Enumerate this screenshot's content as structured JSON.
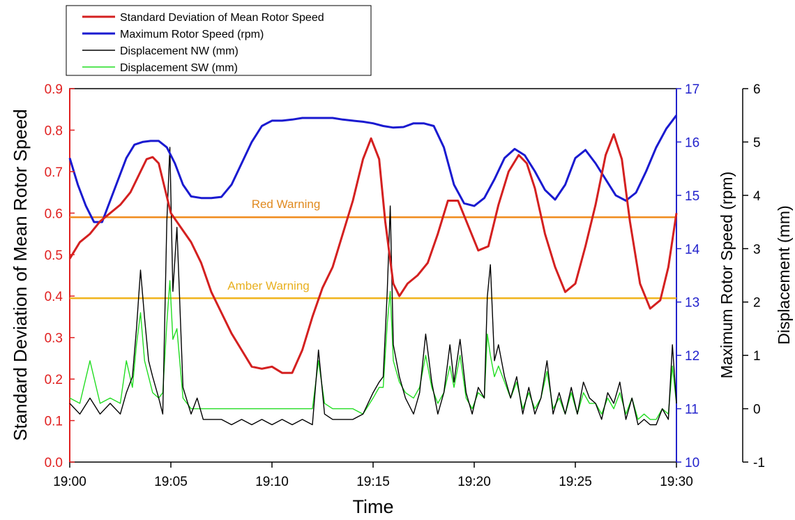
{
  "chart_data": {
    "type": "line",
    "title": "",
    "xlabel": "Time",
    "x_ticks": [
      "19:00",
      "19:05",
      "19:10",
      "19:15",
      "19:20",
      "19:25",
      "19:30"
    ],
    "xlim_minutes": [
      0,
      30
    ],
    "axes": {
      "left": {
        "label": "Standard Deviation of Mean Rotor Speed",
        "ylim": [
          0,
          0.9
        ],
        "ticks": [
          "0.0",
          "0.1",
          "0.2",
          "0.3",
          "0.4",
          "0.5",
          "0.6",
          "0.7",
          "0.8",
          "0.9"
        ],
        "color": "#e02020"
      },
      "right1": {
        "label": "Maximum Rotor Speed (rpm)",
        "ylim": [
          10,
          17
        ],
        "ticks": [
          "10",
          "11",
          "12",
          "13",
          "14",
          "15",
          "16",
          "17"
        ],
        "color": "#2222cc"
      },
      "right2": {
        "label": "Displacement (mm)",
        "ylim": [
          -1,
          6
        ],
        "ticks": [
          "-1",
          "0",
          "1",
          "2",
          "3",
          "4",
          "5",
          "6"
        ],
        "color": "#000000"
      }
    },
    "thresholds": [
      {
        "label": "Red Warning",
        "axis": "left",
        "value": 0.59,
        "color": "#f08c1e"
      },
      {
        "label": "Amber Warning",
        "axis": "left",
        "value": 0.395,
        "color": "#f0b41e"
      }
    ],
    "legend_position": "top-left",
    "series": [
      {
        "name": "Standard Deviation of Mean Rotor Speed",
        "axis": "left",
        "color": "#d42020",
        "x": [
          0,
          0.5,
          1,
          1.5,
          2,
          2.5,
          3,
          3.5,
          3.8,
          4.1,
          4.4,
          4.7,
          5,
          5.5,
          6,
          6.5,
          7,
          7.5,
          8,
          8.5,
          9,
          9.5,
          10,
          10.5,
          11,
          11.5,
          12,
          12.5,
          13,
          13.5,
          14,
          14.5,
          14.9,
          15.3,
          15.6,
          16,
          16.3,
          16.7,
          17.2,
          17.7,
          18.2,
          18.7,
          19.2,
          19.7,
          20.2,
          20.7,
          21.2,
          21.7,
          22.2,
          22.6,
          23,
          23.5,
          24,
          24.5,
          25,
          25.5,
          26,
          26.5,
          26.9,
          27.3,
          27.7,
          28.2,
          28.7,
          29.2,
          29.6,
          30
        ],
        "y": [
          0.49,
          0.53,
          0.55,
          0.58,
          0.6,
          0.62,
          0.65,
          0.7,
          0.73,
          0.735,
          0.72,
          0.66,
          0.6,
          0.565,
          0.53,
          0.48,
          0.41,
          0.36,
          0.31,
          0.27,
          0.23,
          0.225,
          0.23,
          0.215,
          0.215,
          0.27,
          0.35,
          0.42,
          0.47,
          0.55,
          0.63,
          0.73,
          0.78,
          0.73,
          0.58,
          0.43,
          0.4,
          0.43,
          0.45,
          0.48,
          0.55,
          0.63,
          0.63,
          0.57,
          0.51,
          0.52,
          0.62,
          0.7,
          0.74,
          0.72,
          0.66,
          0.55,
          0.47,
          0.41,
          0.43,
          0.52,
          0.62,
          0.74,
          0.79,
          0.73,
          0.58,
          0.43,
          0.37,
          0.39,
          0.47,
          0.6
        ]
      },
      {
        "name": "Maximum Rotor Speed (rpm)",
        "axis": "right1",
        "color": "#1a1ad0",
        "x": [
          0,
          0.4,
          0.8,
          1.2,
          1.6,
          2,
          2.4,
          2.8,
          3.2,
          3.6,
          4,
          4.4,
          4.8,
          5.2,
          5.6,
          6,
          6.5,
          7,
          7.5,
          8,
          8.5,
          9,
          9.5,
          10,
          10.5,
          11,
          11.5,
          12,
          12.5,
          13,
          13.5,
          14,
          14.5,
          15,
          15.5,
          16,
          16.5,
          17,
          17.5,
          18,
          18.5,
          19,
          19.5,
          20,
          20.5,
          21,
          21.5,
          22,
          22.5,
          23,
          23.5,
          24,
          24.5,
          25,
          25.5,
          26,
          26.5,
          27,
          27.5,
          28,
          28.5,
          29,
          29.5,
          30
        ],
        "y": [
          15.7,
          15.2,
          14.8,
          14.5,
          14.5,
          14.9,
          15.3,
          15.7,
          15.95,
          16,
          16.02,
          16.02,
          15.9,
          15.6,
          15.2,
          14.98,
          14.95,
          14.95,
          14.97,
          15.2,
          15.6,
          16,
          16.3,
          16.4,
          16.4,
          16.42,
          16.45,
          16.45,
          16.45,
          16.45,
          16.42,
          16.4,
          16.38,
          16.35,
          16.3,
          16.27,
          16.28,
          16.35,
          16.35,
          16.3,
          15.9,
          15.2,
          14.85,
          14.8,
          14.95,
          15.3,
          15.7,
          15.87,
          15.75,
          15.45,
          15.1,
          14.92,
          15.2,
          15.7,
          15.85,
          15.6,
          15.3,
          15,
          14.9,
          15.05,
          15.45,
          15.9,
          16.25,
          16.5
        ]
      },
      {
        "name": "Displacement NW (mm)",
        "axis": "right2",
        "color": "#000000",
        "x": [
          0,
          0.5,
          1,
          1.5,
          2,
          2.5,
          2.8,
          3.1,
          3.3,
          3.5,
          3.7,
          3.9,
          4.1,
          4.4,
          4.6,
          4.8,
          4.95,
          5.1,
          5.3,
          5.6,
          6,
          6.3,
          6.6,
          7,
          7.5,
          8,
          8.5,
          9,
          9.5,
          10,
          10.5,
          11,
          11.5,
          12,
          12.3,
          12.6,
          13,
          13.5,
          14,
          14.5,
          15,
          15.3,
          15.5,
          15.7,
          15.85,
          16,
          16.3,
          16.6,
          17,
          17.3,
          17.6,
          17.9,
          18.2,
          18.5,
          18.8,
          19,
          19.3,
          19.6,
          19.9,
          20.2,
          20.5,
          20.65,
          20.8,
          21,
          21.2,
          21.5,
          21.8,
          22.1,
          22.4,
          22.7,
          23,
          23.3,
          23.6,
          23.9,
          24.2,
          24.5,
          24.8,
          25.1,
          25.4,
          25.7,
          26,
          26.3,
          26.6,
          26.9,
          27.2,
          27.5,
          27.8,
          28.1,
          28.4,
          28.7,
          29,
          29.3,
          29.6,
          29.8,
          30
        ],
        "y": [
          0.1,
          -0.1,
          0.2,
          -0.1,
          0.1,
          -0.1,
          0.3,
          0.6,
          1.5,
          2.6,
          1.7,
          0.9,
          0.6,
          0.2,
          -0.1,
          3.5,
          4.9,
          2.2,
          3.4,
          0.4,
          -0.1,
          0.2,
          -0.2,
          -0.2,
          -0.2,
          -0.3,
          -0.2,
          -0.3,
          -0.2,
          -0.3,
          -0.2,
          -0.3,
          -0.2,
          -0.3,
          1.1,
          -0.1,
          -0.2,
          -0.2,
          -0.2,
          -0.1,
          0.3,
          0.5,
          0.6,
          2.2,
          3.8,
          1.2,
          0.6,
          0.2,
          -0.1,
          0.3,
          1.4,
          0.5,
          -0.1,
          0.3,
          1.2,
          0.5,
          1.3,
          0.3,
          -0.1,
          0.4,
          0.2,
          2.1,
          2.7,
          0.9,
          1.2,
          0.6,
          0.2,
          0.6,
          -0.1,
          0.4,
          -0.1,
          0.2,
          0.9,
          -0.1,
          0.3,
          -0.1,
          0.4,
          -0.1,
          0.5,
          0.2,
          0.1,
          -0.2,
          0.3,
          0.1,
          0.5,
          -0.2,
          0.2,
          -0.3,
          -0.2,
          -0.3,
          -0.3,
          0,
          -0.2,
          1.2,
          0.1
        ]
      },
      {
        "name": "Displacement SW (mm)",
        "axis": "right2",
        "color": "#22dd22",
        "x": [
          0,
          0.5,
          1,
          1.5,
          2,
          2.5,
          2.8,
          3.1,
          3.3,
          3.5,
          3.7,
          3.9,
          4.1,
          4.4,
          4.6,
          4.8,
          4.95,
          5.1,
          5.3,
          5.6,
          6,
          6.3,
          6.6,
          7,
          7.5,
          8,
          8.5,
          9,
          9.5,
          10,
          10.5,
          11,
          11.5,
          12,
          12.3,
          12.6,
          13,
          13.5,
          14,
          14.5,
          15,
          15.3,
          15.5,
          15.7,
          15.85,
          16,
          16.3,
          16.6,
          17,
          17.3,
          17.6,
          17.9,
          18.2,
          18.5,
          18.8,
          19,
          19.3,
          19.6,
          19.9,
          20.2,
          20.5,
          20.65,
          20.8,
          21,
          21.2,
          21.5,
          21.8,
          22.1,
          22.4,
          22.7,
          23,
          23.3,
          23.6,
          23.9,
          24.2,
          24.5,
          24.8,
          25.1,
          25.4,
          25.7,
          26,
          26.3,
          26.6,
          26.9,
          27.2,
          27.5,
          27.8,
          28.1,
          28.4,
          28.7,
          29,
          29.3,
          29.6,
          29.8,
          30
        ],
        "y": [
          0.2,
          0.1,
          0.9,
          0.1,
          0.2,
          0.1,
          0.9,
          0.4,
          1.2,
          1.8,
          0.9,
          0.6,
          0.3,
          0.2,
          0.3,
          1.6,
          2.4,
          1.3,
          1.5,
          0.2,
          0,
          0,
          0,
          0,
          0,
          0,
          0,
          0,
          0,
          0,
          0,
          0,
          0,
          0,
          0.9,
          0.1,
          0,
          0,
          0,
          -0.1,
          0.2,
          0.4,
          0.4,
          1.6,
          2.2,
          0.9,
          0.5,
          0.3,
          0.2,
          0.4,
          1.0,
          0.4,
          0.1,
          0.3,
          0.8,
          0.4,
          1.0,
          0.2,
          0,
          0.3,
          0.2,
          1.4,
          1.0,
          0.6,
          0.8,
          0.5,
          0.2,
          0.5,
          0,
          0.3,
          0,
          0.2,
          0.7,
          0,
          0.2,
          -0.1,
          0.3,
          -0.1,
          0.3,
          0.1,
          0.1,
          -0.1,
          0.2,
          0,
          0.3,
          -0.1,
          0.2,
          -0.2,
          -0.1,
          -0.2,
          -0.2,
          0,
          -0.1,
          0.8,
          0.1
        ]
      }
    ]
  }
}
